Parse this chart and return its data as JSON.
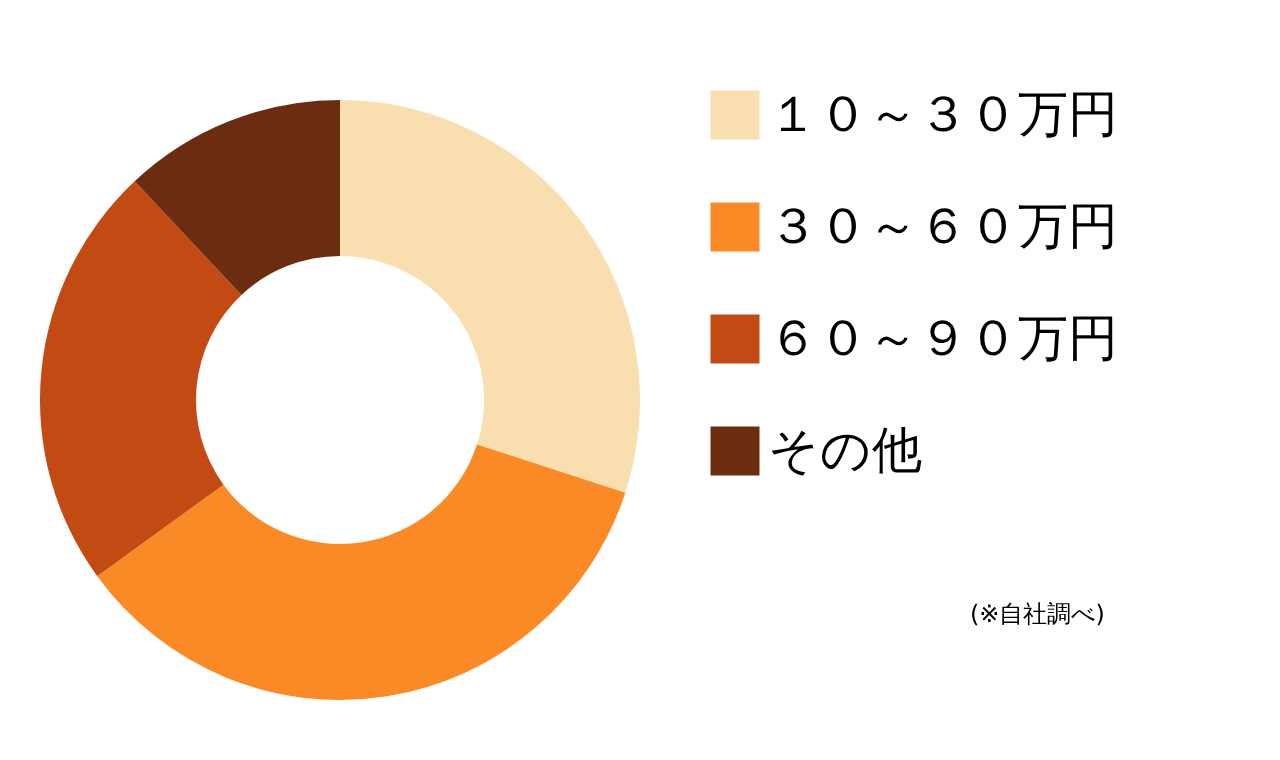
{
  "chart_data": {
    "type": "donut",
    "categories": [
      "１０～３０万円",
      "３０～６０万円",
      "６０～９０万円",
      "その他"
    ],
    "values": [
      30,
      35,
      23,
      12
    ],
    "colors": [
      "#f9dfb0",
      "#fa8a25",
      "#c44a14",
      "#6b2c10"
    ],
    "legend": "right",
    "annotations": [
      "(※自社調べ)"
    ]
  }
}
